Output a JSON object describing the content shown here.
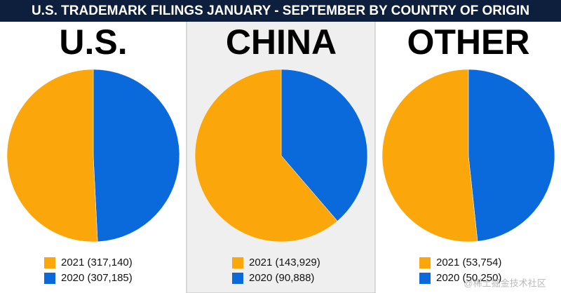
{
  "title": "U.S. TRADEMARK FILINGS JANUARY - SEPTEMBER BY COUNTRY OF ORIGIN",
  "watermark": "@稀土掘金技术社区",
  "chart_data": [
    {
      "type": "pie",
      "title": "U.S.",
      "categories": [
        "2021 (317,140)",
        "2020 (307,185)"
      ],
      "values": [
        317140,
        307185
      ],
      "colors": [
        "#fba70b",
        "#0b6adb"
      ]
    },
    {
      "type": "pie",
      "title": "CHINA",
      "categories": [
        "2021 (143,929)",
        "2020 (90,888)"
      ],
      "values": [
        143929,
        90888
      ],
      "colors": [
        "#fba70b",
        "#0b6adb"
      ]
    },
    {
      "type": "pie",
      "title": "OTHER",
      "categories": [
        "2021 (53,754)",
        "2020 (50,250)"
      ],
      "values": [
        53754,
        50250
      ],
      "colors": [
        "#fba70b",
        "#0b6adb"
      ]
    }
  ]
}
